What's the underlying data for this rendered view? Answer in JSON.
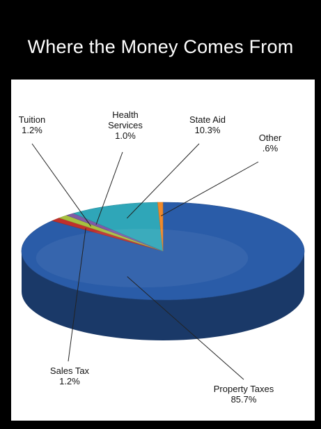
{
  "chart_data": {
    "type": "pie",
    "title": "Where the Money Comes From",
    "slices": [
      {
        "name": "Property Taxes",
        "lines": [
          "Property Taxes"
        ],
        "pct_label": "85.7%",
        "value": 85.7,
        "color": "#2a5ca8"
      },
      {
        "name": "Sales Tax",
        "lines": [
          "Sales Tax"
        ],
        "pct_label": "1.2%",
        "value": 1.2,
        "color": "#c0302b"
      },
      {
        "name": "Tuition",
        "lines": [
          "Tuition"
        ],
        "pct_label": "1.2%",
        "value": 1.2,
        "color": "#a7c040"
      },
      {
        "name": "Health Services",
        "lines": [
          "Health",
          "Services"
        ],
        "pct_label": "1.0%",
        "value": 1.0,
        "color": "#7f5aa6"
      },
      {
        "name": "State Aid",
        "lines": [
          "State Aid"
        ],
        "pct_label": "10.3%",
        "value": 10.3,
        "color": "#2fa6b8"
      },
      {
        "name": "Other",
        "lines": [
          "Other"
        ],
        "pct_label": ".6%",
        "value": 0.6,
        "color": "#f08a2b"
      }
    ]
  }
}
